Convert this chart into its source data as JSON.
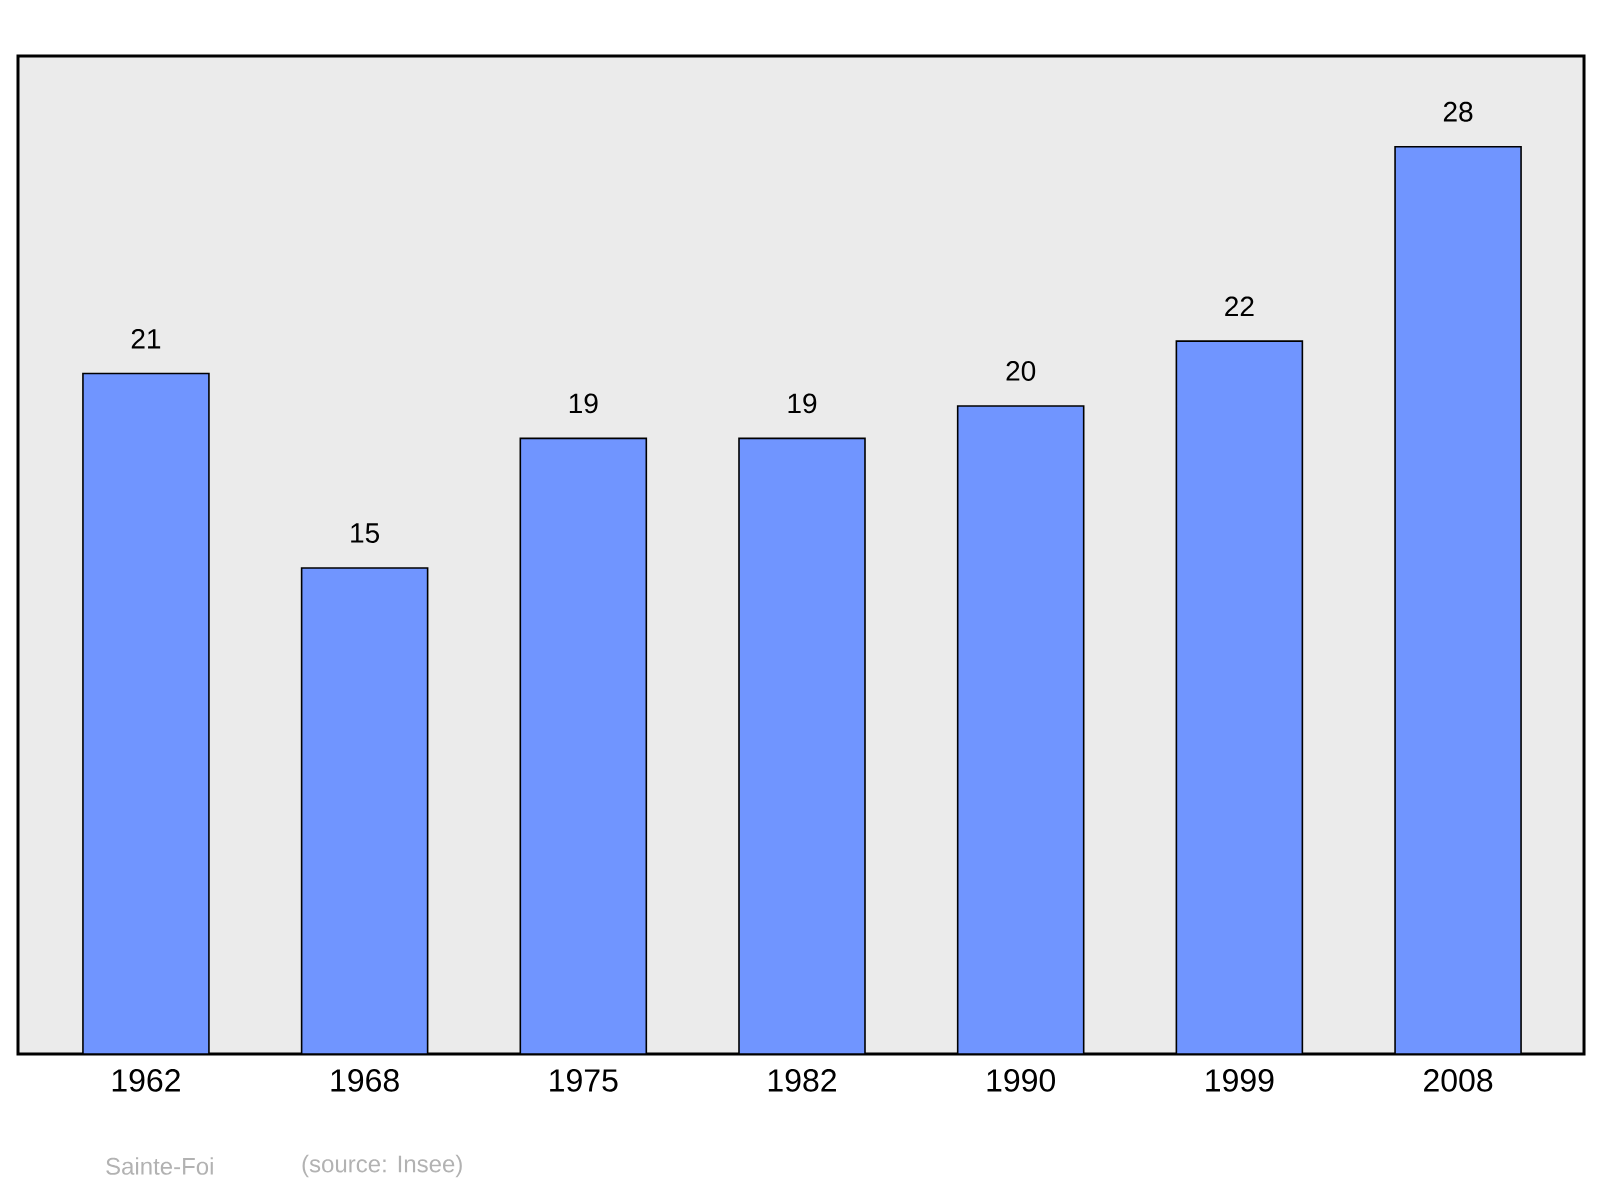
{
  "chart_data": {
    "type": "bar",
    "categories": [
      "1962",
      "1968",
      "1975",
      "1982",
      "1990",
      "1999",
      "2008"
    ],
    "values": [
      21,
      15,
      19,
      19,
      20,
      22,
      28
    ],
    "color": "#7095ff",
    "ylim": [
      0,
      30.8
    ],
    "data_labels": true,
    "tick_labels": "x",
    "annotations": [
      "Sainte-Foi",
      "(source: Insee)"
    ]
  }
}
